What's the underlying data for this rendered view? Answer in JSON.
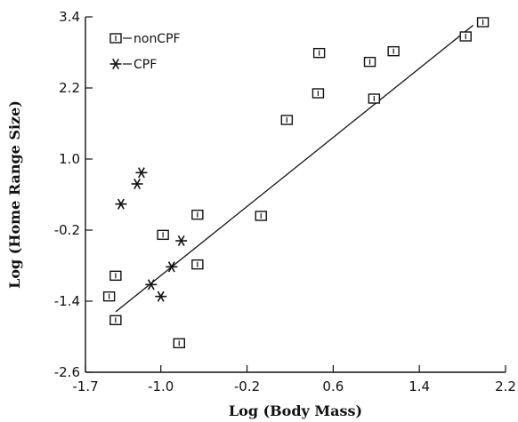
{
  "chart_data": {
    "type": "scatter",
    "xlabel": "Log (Body Mass)",
    "ylabel": "Log (Home Range Size)",
    "xlim": [
      -1.7,
      2.2
    ],
    "ylim": [
      -2.6,
      3.4
    ],
    "x_ticks": [
      "-1.7",
      "-1.0",
      "-0.2",
      "0.6",
      "1.4",
      "2.2"
    ],
    "x_tick_values": [
      -1.7,
      -1.0,
      -0.2,
      0.6,
      1.4,
      2.2
    ],
    "y_ticks": [
      "3.4",
      "2.2",
      "1.0",
      "-0.2",
      "-1.4",
      "-2.6"
    ],
    "y_tick_values": [
      3.4,
      2.2,
      1.0,
      -0.2,
      -1.4,
      -2.6
    ],
    "grid": false,
    "legend_position": "top-left",
    "series": [
      {
        "name": "nonCPF",
        "marker": "square",
        "points": [
          {
            "x": -1.48,
            "y": -1.32
          },
          {
            "x": -1.42,
            "y": -0.97
          },
          {
            "x": -1.42,
            "y": -1.72
          },
          {
            "x": -0.98,
            "y": -0.28
          },
          {
            "x": -0.83,
            "y": -2.11
          },
          {
            "x": -0.66,
            "y": 0.06
          },
          {
            "x": -0.66,
            "y": -0.78
          },
          {
            "x": -0.07,
            "y": 0.04
          },
          {
            "x": 0.17,
            "y": 1.66
          },
          {
            "x": 0.46,
            "y": 2.11
          },
          {
            "x": 0.47,
            "y": 2.79
          },
          {
            "x": 0.94,
            "y": 2.64
          },
          {
            "x": 0.98,
            "y": 2.02
          },
          {
            "x": 1.16,
            "y": 2.82
          },
          {
            "x": 1.83,
            "y": 3.07
          },
          {
            "x": 1.99,
            "y": 3.31
          }
        ]
      },
      {
        "name": "CPF",
        "marker": "asterisk",
        "points": [
          {
            "x": -1.37,
            "y": 0.24
          },
          {
            "x": -1.22,
            "y": 0.58
          },
          {
            "x": -1.18,
            "y": 0.77
          },
          {
            "x": -1.09,
            "y": -1.12
          },
          {
            "x": -1.0,
            "y": -1.32
          },
          {
            "x": -0.9,
            "y": -0.82
          },
          {
            "x": -0.81,
            "y": -0.38
          }
        ]
      }
    ],
    "fit_line": {
      "x": [
        -1.42,
        1.9
      ],
      "y": [
        -1.58,
        3.26
      ]
    }
  }
}
